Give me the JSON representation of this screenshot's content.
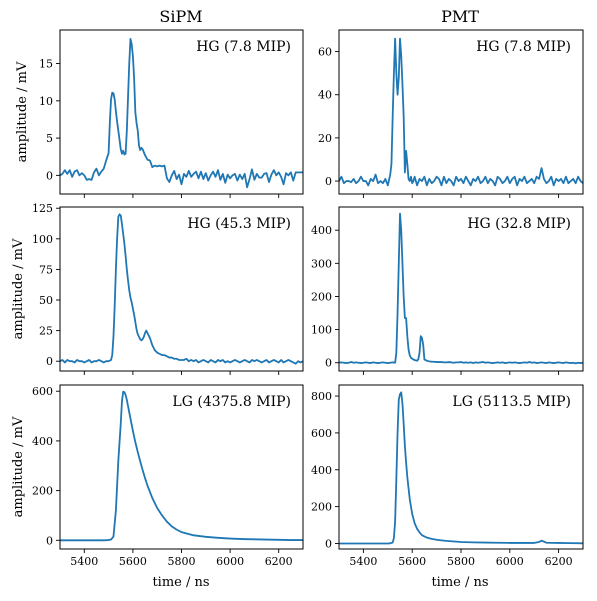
{
  "figure": {
    "column_titles": [
      "SiPM",
      "PMT"
    ],
    "xlabel": "time / ns",
    "ylabel": "amplitude / mV",
    "line_color": "#1f77b4"
  },
  "chart_data": [
    {
      "type": "line",
      "row": 0,
      "col": 0,
      "annotation": "HG (7.8 MIP)",
      "xlim": [
        5300,
        6300
      ],
      "ylim": [
        -2.5,
        19.5
      ],
      "xticks": [
        5400,
        5600,
        5800,
        6000,
        6200
      ],
      "show_xtick_labels": false,
      "yticks": [
        0,
        5,
        10,
        15
      ],
      "x": [
        5300,
        5310,
        5320,
        5330,
        5340,
        5350,
        5360,
        5370,
        5380,
        5390,
        5400,
        5410,
        5420,
        5430,
        5440,
        5450,
        5460,
        5470,
        5480,
        5490,
        5500,
        5505,
        5510,
        5515,
        5520,
        5525,
        5530,
        5535,
        5540,
        5545,
        5550,
        5555,
        5560,
        5565,
        5570,
        5575,
        5580,
        5585,
        5590,
        5595,
        5600,
        5605,
        5610,
        5615,
        5620,
        5625,
        5630,
        5635,
        5640,
        5650,
        5660,
        5670,
        5680,
        5690,
        5700,
        5710,
        5720,
        5730,
        5740,
        5750,
        5760,
        5770,
        5780,
        5790,
        5800,
        5810,
        5820,
        5830,
        5840,
        5850,
        5860,
        5870,
        5880,
        5890,
        5900,
        5910,
        5920,
        5930,
        5940,
        5950,
        5960,
        5970,
        5980,
        5990,
        6000,
        6010,
        6020,
        6030,
        6040,
        6050,
        6060,
        6070,
        6080,
        6090,
        6100,
        6110,
        6120,
        6130,
        6140,
        6150,
        6160,
        6170,
        6180,
        6190,
        6200,
        6210,
        6220,
        6230,
        6240,
        6250,
        6260,
        6270,
        6280,
        6290,
        6300
      ],
      "y": [
        0,
        0.2,
        0.7,
        0.2,
        0.7,
        -0.2,
        0.5,
        0.7,
        0,
        0.3,
        0,
        -0.6,
        -0.5,
        -0.6,
        0.4,
        0.9,
        0,
        0.5,
        0.9,
        2,
        3,
        7,
        10.2,
        11.1,
        11,
        10.2,
        8.6,
        7.2,
        6,
        4.8,
        3.5,
        2.9,
        3.3,
        2.8,
        2.9,
        6,
        10.5,
        15,
        18.3,
        17.6,
        16,
        13,
        8.5,
        7,
        6,
        4,
        3.4,
        3.7,
        3.5,
        2.7,
        2.1,
        2,
        1.1,
        1.3,
        1.2,
        1.3,
        1.2,
        1.3,
        -0.4,
        -0.9,
        0,
        0.6,
        -0.5,
        0.1,
        -1.2,
        0.2,
        -0.2,
        0.6,
        -0.2,
        0.2,
        0.5,
        -0.4,
        0.5,
        -0.5,
        0.3,
        -0.7,
        0,
        0.5,
        -0.2,
        0.7,
        -0.6,
        0.2,
        -1,
        0.1,
        -0.4,
        0,
        0.2,
        -0.7,
        0.1,
        -0.5,
        0.2,
        -1.6,
        -0.5,
        0.8,
        -0.6,
        0.2,
        -0.3,
        -0.3,
        0.2,
        0.3,
        -0.9,
        0.1,
        0.7,
        0,
        0.4,
        -0.2,
        -1.2,
        0.3,
        0,
        0.4,
        -0.7,
        0.4,
        0.4,
        0.4,
        0.4
      ]
    },
    {
      "type": "line",
      "row": 0,
      "col": 1,
      "annotation": "HG (7.8 MIP)",
      "xlim": [
        5300,
        6300
      ],
      "ylim": [
        -6,
        70
      ],
      "xticks": [
        5400,
        5600,
        5800,
        6000,
        6200
      ],
      "show_xtick_labels": false,
      "yticks": [
        0,
        20,
        40,
        60
      ],
      "x": [
        5300,
        5310,
        5320,
        5330,
        5340,
        5350,
        5360,
        5370,
        5380,
        5390,
        5400,
        5410,
        5420,
        5430,
        5440,
        5450,
        5460,
        5470,
        5480,
        5490,
        5500,
        5510,
        5515,
        5520,
        5525,
        5530,
        5535,
        5540,
        5545,
        5550,
        5555,
        5560,
        5565,
        5570,
        5575,
        5580,
        5585,
        5590,
        5595,
        5600,
        5605,
        5610,
        5620,
        5630,
        5640,
        5650,
        5660,
        5670,
        5680,
        5690,
        5700,
        5710,
        5720,
        5730,
        5740,
        5750,
        5760,
        5770,
        5780,
        5790,
        5800,
        5810,
        5820,
        5830,
        5840,
        5850,
        5860,
        5870,
        5880,
        5890,
        5900,
        5910,
        5920,
        5930,
        5940,
        5950,
        5960,
        5970,
        5980,
        5990,
        6000,
        6010,
        6020,
        6030,
        6040,
        6050,
        6060,
        6070,
        6080,
        6090,
        6100,
        6110,
        6120,
        6130,
        6140,
        6150,
        6160,
        6170,
        6180,
        6190,
        6200,
        6210,
        6220,
        6230,
        6240,
        6250,
        6260,
        6270,
        6280,
        6290,
        6300
      ],
      "y": [
        0,
        2,
        -1,
        0,
        0,
        -0.5,
        1,
        -1,
        0,
        2,
        0,
        0,
        -2,
        1,
        0,
        3,
        -1,
        0,
        -1,
        1,
        -2,
        3,
        8,
        30,
        50,
        66,
        50,
        40,
        48,
        66,
        58,
        45,
        30,
        4,
        14,
        8,
        1,
        0,
        2,
        -1,
        0,
        2,
        -2,
        1,
        0,
        2,
        -2,
        1,
        -1,
        0,
        2,
        1,
        -2,
        2,
        -1,
        1,
        0,
        -2,
        2,
        0,
        1,
        -1,
        2,
        0,
        -2,
        1,
        0,
        2,
        -1,
        0,
        2,
        -1,
        1,
        0,
        -2,
        2,
        1,
        -1,
        0,
        2,
        -1,
        1,
        2,
        -2,
        1,
        0,
        2,
        -1,
        0,
        1,
        -1,
        2,
        1,
        6,
        1,
        -1,
        0,
        2,
        -2,
        1,
        0,
        1,
        -1,
        2,
        -1,
        0,
        1,
        -1,
        2,
        0,
        -1
      ]
    },
    {
      "type": "line",
      "row": 1,
      "col": 0,
      "annotation": "HG (45.3 MIP)",
      "xlim": [
        5300,
        6300
      ],
      "ylim": [
        -8,
        126
      ],
      "xticks": [
        5400,
        5600,
        5800,
        6000,
        6200
      ],
      "show_xtick_labels": false,
      "yticks": [
        0,
        25,
        50,
        75,
        100,
        125
      ],
      "x": [
        5300,
        5310,
        5320,
        5330,
        5340,
        5350,
        5360,
        5370,
        5380,
        5390,
        5400,
        5410,
        5420,
        5430,
        5440,
        5450,
        5460,
        5470,
        5480,
        5490,
        5500,
        5510,
        5515,
        5520,
        5525,
        5530,
        5535,
        5540,
        5545,
        5550,
        5555,
        5560,
        5565,
        5570,
        5575,
        5580,
        5585,
        5590,
        5595,
        5600,
        5605,
        5610,
        5615,
        5620,
        5625,
        5630,
        5635,
        5640,
        5645,
        5650,
        5655,
        5660,
        5665,
        5670,
        5675,
        5680,
        5685,
        5690,
        5695,
        5700,
        5710,
        5720,
        5730,
        5740,
        5750,
        5760,
        5770,
        5780,
        5790,
        5800,
        5810,
        5820,
        5830,
        5840,
        5850,
        5860,
        5870,
        5880,
        5890,
        5900,
        5910,
        5920,
        5930,
        5940,
        5950,
        5960,
        5970,
        5980,
        5990,
        6000,
        6010,
        6020,
        6030,
        6040,
        6050,
        6060,
        6070,
        6080,
        6090,
        6100,
        6110,
        6120,
        6130,
        6140,
        6150,
        6160,
        6170,
        6180,
        6190,
        6200,
        6210,
        6220,
        6230,
        6240,
        6250,
        6260,
        6270,
        6280,
        6290,
        6300
      ],
      "y": [
        0,
        1,
        -1,
        1,
        0,
        0,
        -1,
        1,
        0,
        0,
        -1,
        0,
        1,
        -1,
        0,
        0,
        1,
        0,
        -1,
        0,
        0,
        1,
        5,
        20,
        45,
        75,
        100,
        118,
        120,
        119,
        112,
        104,
        96,
        86,
        75,
        66,
        58,
        52,
        48,
        43,
        38,
        32,
        26,
        22,
        20,
        18,
        17,
        18,
        20,
        23,
        25,
        23,
        21,
        19,
        16,
        13,
        11,
        9,
        8,
        7,
        6,
        5,
        5,
        4,
        3,
        3,
        2,
        2,
        1,
        1,
        1,
        2,
        0,
        1,
        0,
        1,
        -1,
        0,
        1,
        0,
        -1,
        1,
        0,
        -1,
        1,
        0,
        1,
        -1,
        0,
        -1,
        0,
        1,
        0,
        -1,
        0,
        1,
        0,
        -1,
        1,
        0,
        1,
        0,
        -1,
        0,
        1,
        -1,
        0,
        1,
        0,
        -1,
        1,
        -1,
        0,
        1,
        0,
        -1,
        -2,
        0,
        -1,
        0
      ]
    },
    {
      "type": "line",
      "row": 1,
      "col": 1,
      "annotation": "HG (32.8 MIP)",
      "xlim": [
        5300,
        6300
      ],
      "ylim": [
        -25,
        470
      ],
      "xticks": [
        5400,
        5600,
        5800,
        6000,
        6200
      ],
      "show_xtick_labels": false,
      "yticks": [
        0,
        100,
        200,
        300,
        400
      ],
      "x": [
        5300,
        5310,
        5320,
        5330,
        5340,
        5350,
        5360,
        5370,
        5380,
        5390,
        5400,
        5410,
        5420,
        5430,
        5440,
        5450,
        5460,
        5470,
        5480,
        5490,
        5500,
        5510,
        5520,
        5530,
        5535,
        5540,
        5545,
        5550,
        5555,
        5560,
        5565,
        5570,
        5575,
        5580,
        5585,
        5590,
        5595,
        5600,
        5605,
        5610,
        5615,
        5620,
        5625,
        5630,
        5635,
        5640,
        5645,
        5650,
        5655,
        5660,
        5665,
        5670,
        5680,
        5690,
        5700,
        5710,
        5720,
        5730,
        5740,
        5750,
        5760,
        5770,
        5780,
        5790,
        5800,
        5810,
        5820,
        5830,
        5840,
        5850,
        5860,
        5870,
        5880,
        5890,
        5900,
        5910,
        5920,
        5930,
        5940,
        5950,
        5960,
        5970,
        5980,
        5990,
        6000,
        6010,
        6020,
        6030,
        6040,
        6050,
        6060,
        6070,
        6080,
        6090,
        6100,
        6110,
        6120,
        6130,
        6140,
        6150,
        6160,
        6170,
        6180,
        6190,
        6200,
        6210,
        6220,
        6230,
        6240,
        6250,
        6260,
        6270,
        6280,
        6290,
        6300
      ],
      "y": [
        0,
        1,
        0,
        -1,
        0,
        2,
        0,
        1,
        0,
        -1,
        0,
        1,
        0,
        -1,
        1,
        0,
        -1,
        0,
        1,
        0,
        -1,
        0,
        1,
        0,
        30,
        150,
        300,
        450,
        400,
        300,
        200,
        135,
        135,
        80,
        40,
        22,
        15,
        12,
        10,
        8,
        7,
        6,
        10,
        30,
        80,
        75,
        55,
        10,
        8,
        6,
        5,
        4,
        3,
        3,
        2,
        2,
        2,
        1,
        1,
        2,
        1,
        0,
        1,
        1,
        2,
        0,
        1,
        0,
        1,
        -1,
        1,
        0,
        1,
        2,
        0,
        1,
        0,
        -1,
        0,
        1,
        0,
        1,
        -1,
        0,
        1,
        0,
        1,
        0,
        -1,
        0,
        1,
        0,
        2,
        0,
        1,
        -1,
        0,
        1,
        0,
        -1,
        1,
        0,
        -1,
        0,
        1,
        0,
        -1,
        1,
        0,
        -1,
        0,
        -2,
        0,
        -1,
        0
      ]
    },
    {
      "type": "line",
      "row": 2,
      "col": 0,
      "annotation": "LG (4375.8 MIP)",
      "xlim": [
        5300,
        6300
      ],
      "ylim": [
        -35,
        625
      ],
      "xticks": [
        5400,
        5600,
        5800,
        6000,
        6200
      ],
      "show_xtick_labels": true,
      "yticks": [
        0,
        200,
        400,
        600
      ],
      "x": [
        5300,
        5350,
        5400,
        5450,
        5480,
        5500,
        5510,
        5520,
        5530,
        5540,
        5550,
        5555,
        5560,
        5565,
        5570,
        5575,
        5580,
        5590,
        5600,
        5610,
        5620,
        5630,
        5640,
        5650,
        5660,
        5680,
        5700,
        5720,
        5740,
        5760,
        5780,
        5800,
        5850,
        5900,
        5950,
        6000,
        6050,
        6100,
        6150,
        6200,
        6250,
        6300
      ],
      "y": [
        0,
        0,
        0,
        0,
        0,
        1,
        3,
        15,
        120,
        320,
        470,
        560,
        598,
        596,
        585,
        565,
        540,
        490,
        440,
        395,
        355,
        318,
        283,
        250,
        220,
        170,
        130,
        100,
        75,
        56,
        43,
        33,
        20,
        14,
        10,
        7,
        5,
        4,
        3,
        2,
        1,
        1
      ]
    },
    {
      "type": "line",
      "row": 2,
      "col": 1,
      "annotation": "LG (5113.5 MIP)",
      "xlim": [
        5300,
        6300
      ],
      "ylim": [
        -30,
        860
      ],
      "xticks": [
        5400,
        5600,
        5800,
        6000,
        6200
      ],
      "show_xtick_labels": true,
      "yticks": [
        0,
        200,
        400,
        600,
        800
      ],
      "x": [
        5300,
        5350,
        5400,
        5450,
        5480,
        5500,
        5510,
        5520,
        5525,
        5530,
        5535,
        5540,
        5545,
        5550,
        5555,
        5560,
        5565,
        5570,
        5575,
        5580,
        5585,
        5590,
        5600,
        5610,
        5620,
        5630,
        5640,
        5650,
        5660,
        5680,
        5700,
        5720,
        5740,
        5760,
        5780,
        5800,
        5850,
        5900,
        5950,
        6000,
        6050,
        6100,
        6120,
        6130,
        6140,
        6150,
        6200,
        6250,
        6300
      ],
      "y": [
        0,
        0,
        0,
        0,
        0,
        0,
        1,
        5,
        30,
        120,
        350,
        600,
        780,
        810,
        820,
        760,
        650,
        530,
        440,
        360,
        300,
        240,
        160,
        110,
        80,
        60,
        45,
        38,
        32,
        25,
        20,
        17,
        14,
        12,
        10,
        8,
        6,
        5,
        4,
        3,
        3,
        3,
        8,
        15,
        10,
        4,
        3,
        2,
        1
      ]
    }
  ]
}
